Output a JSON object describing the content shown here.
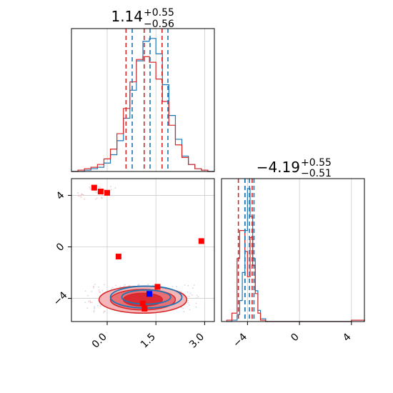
{
  "chart_data": [
    {
      "panel": "marginal_param1",
      "type": "histogram",
      "title": {
        "main": "1.14",
        "sup": "+0.55",
        "sub": "−0.56"
      },
      "xlim": [
        -1.1,
        3.3
      ],
      "grid": true,
      "colors": {
        "blue": "#1f77b4",
        "red": "#d62728"
      },
      "blue_quantiles": [
        0.77,
        1.32,
        1.87
      ],
      "red_quantiles": [
        0.58,
        1.14,
        1.69
      ],
      "series": [
        {
          "name": "",
          "color": "#1f77b4",
          "x": [
            -1.1,
            -0.9,
            -0.7,
            -0.5,
            -0.3,
            -0.1,
            0.1,
            0.3,
            0.5,
            0.7,
            0.9,
            1.1,
            1.3,
            1.5,
            1.7,
            1.9,
            2.1,
            2.3,
            2.5,
            2.7,
            2.9,
            3.1,
            3.3
          ],
          "y": [
            0,
            0,
            0.01,
            0.02,
            0.03,
            0.06,
            0.12,
            0.22,
            0.38,
            0.58,
            0.79,
            0.93,
            0.95,
            0.84,
            0.62,
            0.4,
            0.23,
            0.11,
            0.05,
            0.02,
            0.01,
            0,
            0
          ]
        },
        {
          "name": "",
          "color": "#d62728",
          "x": [
            -1.1,
            -0.9,
            -0.7,
            -0.5,
            -0.3,
            -0.1,
            0.1,
            0.3,
            0.5,
            0.7,
            0.9,
            1.1,
            1.3,
            1.5,
            1.7,
            1.9,
            2.1,
            2.3,
            2.5,
            2.7,
            2.9,
            3.1,
            3.3
          ],
          "y": [
            0,
            0.01,
            0.02,
            0.03,
            0.05,
            0.09,
            0.16,
            0.27,
            0.45,
            0.64,
            0.8,
            0.82,
            0.78,
            0.66,
            0.5,
            0.33,
            0.19,
            0.1,
            0.05,
            0.02,
            0.01,
            0,
            0
          ]
        }
      ]
    },
    {
      "panel": "marginal_param2",
      "type": "histogram",
      "title": {
        "main": "−4.19",
        "sup": "+0.55",
        "sub": "−0.51"
      },
      "xlim": [
        -6,
        5
      ],
      "xticks": [
        -4,
        0,
        4
      ],
      "xtick_labels": [
        "−4",
        "0",
        "4"
      ],
      "grid": true,
      "blue_quantiles": [
        -4.2,
        -3.85,
        -3.5
      ],
      "red_quantiles": [
        -4.7,
        -4.19,
        -3.64
      ],
      "series": [
        {
          "name": "",
          "color": "#1f77b4",
          "x": [
            -5.6,
            -5.2,
            -4.8,
            -4.6,
            -4.4,
            -4.2,
            -4.0,
            -3.8,
            -3.6,
            -3.4,
            -3.2,
            -3.0,
            -2.6,
            -2.0,
            0,
            4.0,
            5.0
          ],
          "y": [
            0,
            0.01,
            0.05,
            0.15,
            0.35,
            0.65,
            0.95,
            0.75,
            0.45,
            0.22,
            0.08,
            0.02,
            0,
            0,
            0,
            0.01,
            0
          ]
        },
        {
          "name": "",
          "color": "#d62728",
          "x": [
            -5.6,
            -5.2,
            -4.8,
            -4.6,
            -4.4,
            -4.2,
            -4.0,
            -3.8,
            -3.6,
            -3.4,
            -3.2,
            -3.0,
            -2.6,
            -2.0,
            0,
            4.0,
            5.0
          ],
          "y": [
            0.01,
            0.06,
            0.45,
            0.65,
            0.65,
            0.5,
            0.32,
            0.6,
            0.4,
            0.2,
            0.06,
            0.01,
            0,
            0,
            0,
            0.01,
            0
          ]
        }
      ]
    },
    {
      "panel": "joint",
      "type": "scatter",
      "xlim": [
        -1.1,
        3.3
      ],
      "ylim": [
        -5.8,
        5.3
      ],
      "xticks": [
        0,
        1.5,
        3
      ],
      "xtick_labels": [
        "0.0",
        "1.5",
        "3.0"
      ],
      "yticks": [
        4,
        0,
        -4
      ],
      "ytick_labels": [
        "4",
        "0",
        "−4"
      ],
      "grid": true,
      "red_points": [
        {
          "x": -0.4,
          "y": 4.6
        },
        {
          "x": -0.2,
          "y": 4.3
        },
        {
          "x": 0.0,
          "y": 4.2
        },
        {
          "x": 0.35,
          "y": -0.75
        },
        {
          "x": 2.9,
          "y": 0.45
        },
        {
          "x": 1.55,
          "y": -3.1
        },
        {
          "x": 1.1,
          "y": -4.4
        },
        {
          "x": 1.15,
          "y": -4.8
        }
      ],
      "blue_points": [
        {
          "x": 1.3,
          "y": -3.65
        }
      ],
      "red_contours": [
        {
          "cx": 1.1,
          "cy": -4.1,
          "rx": 1.35,
          "ry": 1.05
        },
        {
          "cx": 1.1,
          "cy": -4.1,
          "rx": 1.0,
          "ry": 0.8
        },
        {
          "cx": 1.1,
          "cy": -4.1,
          "rx": 0.6,
          "ry": 0.5
        }
      ],
      "blue_contours": [
        {
          "cx": 1.2,
          "cy": -3.9,
          "rx": 1.1,
          "ry": 0.85
        },
        {
          "cx": 1.2,
          "cy": -3.9,
          "rx": 0.75,
          "ry": 0.55
        }
      ]
    }
  ]
}
